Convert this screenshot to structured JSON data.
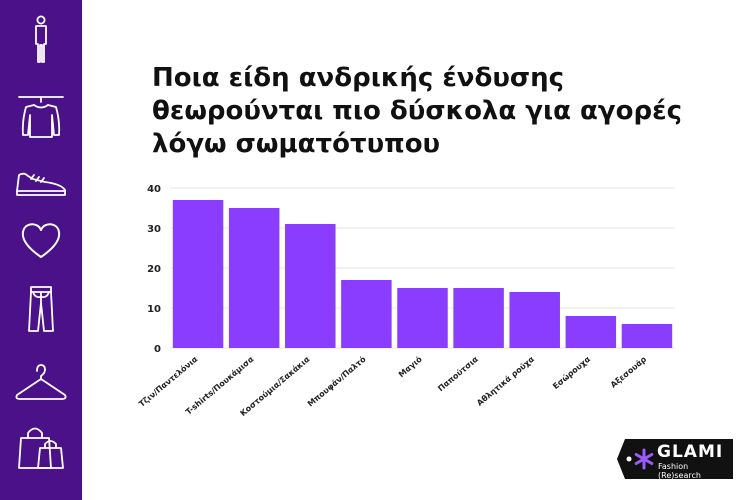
{
  "sidebar": {
    "icons": [
      "person-icon",
      "sweater-icon",
      "sneaker-icon",
      "heart-icon",
      "jeans-icon",
      "hanger-icon",
      "shopping-bags-icon"
    ]
  },
  "logo": {
    "brand": "GLAMI",
    "tagline": "Fashion (Re)search"
  },
  "colors": {
    "sidebar": "#4a1189",
    "bar": "#8b3dff",
    "logo_bg": "#111111",
    "logo_mark": "#9b5cff"
  },
  "chart_data": {
    "type": "bar",
    "title": "Ποια είδη ανδρικής ένδυσης θεωρούνται πιο δύσκολα για αγορές λόγω σωματότυπου",
    "categories": [
      "Τζιν/Παντελόνια",
      "T-shirts/Πουκάμισα",
      "Κοστούμια/Σακάκια",
      "Μπουφάν/Παλτό",
      "Μαγιό",
      "Παπούτσια",
      "Αθλητικά ρούχα",
      "Εσώρουχα",
      "Αξεσουάρ"
    ],
    "values": [
      37,
      35,
      31,
      17,
      15,
      15,
      14,
      8,
      6
    ],
    "ylim": [
      0,
      40
    ],
    "yticks": [
      0,
      10,
      20,
      30,
      40
    ],
    "grid": true,
    "legend": "none"
  }
}
